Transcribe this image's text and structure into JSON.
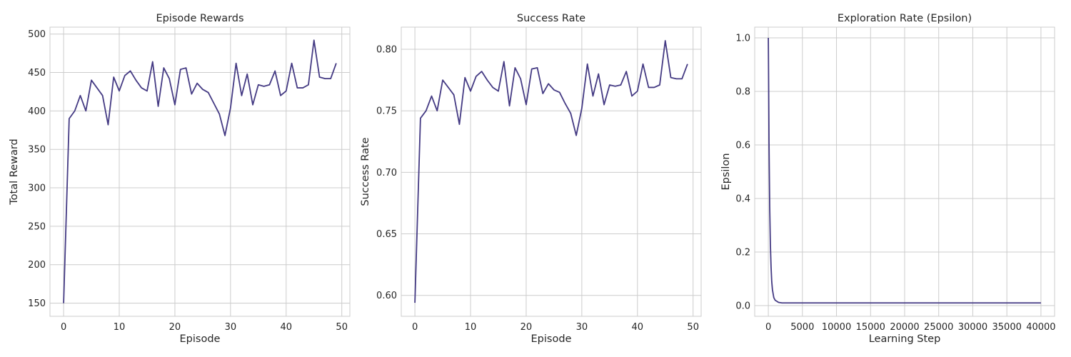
{
  "line_color": "#443a83",
  "chart_data": [
    {
      "type": "line",
      "title": "Episode Rewards",
      "xlabel": "Episode",
      "ylabel": "Total Reward",
      "xlim": [
        -2.45,
        51.45
      ],
      "ylim": [
        132.9,
        509.0
      ],
      "xticks": [
        0,
        10,
        20,
        30,
        40,
        50
      ],
      "yticks": [
        150,
        200,
        250,
        300,
        350,
        400,
        450,
        500
      ],
      "xtick_labels": [
        "0",
        "10",
        "20",
        "30",
        "40",
        "50"
      ],
      "ytick_labels": [
        "150",
        "200",
        "250",
        "300",
        "350",
        "400",
        "450",
        "500"
      ],
      "grid": true,
      "x": [
        0,
        1,
        2,
        3,
        4,
        5,
        6,
        7,
        8,
        9,
        10,
        11,
        12,
        13,
        14,
        15,
        16,
        17,
        18,
        19,
        20,
        21,
        22,
        23,
        24,
        25,
        26,
        27,
        28,
        29,
        30,
        31,
        32,
        33,
        34,
        35,
        36,
        37,
        38,
        39,
        40,
        41,
        42,
        43,
        44,
        45,
        46,
        47,
        48,
        49
      ],
      "y": [
        150,
        390,
        400,
        420,
        400,
        440,
        430,
        420,
        382,
        444,
        426,
        446,
        452,
        440,
        430,
        426,
        464,
        406,
        456,
        442,
        408,
        454,
        456,
        422,
        436,
        428,
        424,
        410,
        396,
        368,
        404,
        462,
        420,
        448,
        408,
        434,
        432,
        434,
        452,
        420,
        426,
        462,
        430,
        430,
        434,
        492,
        444,
        442,
        442,
        462
      ]
    },
    {
      "type": "line",
      "title": "Success Rate",
      "xlabel": "Episode",
      "ylabel": "Success Rate",
      "xlim": [
        -2.45,
        51.45
      ],
      "ylim": [
        0.583,
        0.818
      ],
      "xticks": [
        0,
        10,
        20,
        30,
        40,
        50
      ],
      "yticks": [
        0.6,
        0.65,
        0.7,
        0.75,
        0.8
      ],
      "xtick_labels": [
        "0",
        "10",
        "20",
        "30",
        "40",
        "50"
      ],
      "ytick_labels": [
        "0.60",
        "0.65",
        "0.70",
        "0.75",
        "0.80"
      ],
      "grid": true,
      "x": [
        0,
        1,
        2,
        3,
        4,
        5,
        6,
        7,
        8,
        9,
        10,
        11,
        12,
        13,
        14,
        15,
        16,
        17,
        18,
        19,
        20,
        21,
        22,
        23,
        24,
        25,
        26,
        27,
        28,
        29,
        30,
        31,
        32,
        33,
        34,
        35,
        36,
        37,
        38,
        39,
        40,
        41,
        42,
        43,
        44,
        45,
        46,
        47,
        48,
        49
      ],
      "y": [
        0.594,
        0.744,
        0.75,
        0.762,
        0.75,
        0.775,
        0.769,
        0.763,
        0.739,
        0.777,
        0.766,
        0.778,
        0.782,
        0.775,
        0.769,
        0.766,
        0.79,
        0.754,
        0.785,
        0.776,
        0.755,
        0.784,
        0.785,
        0.764,
        0.772,
        0.767,
        0.765,
        0.756,
        0.748,
        0.73,
        0.752,
        0.788,
        0.762,
        0.78,
        0.755,
        0.771,
        0.77,
        0.771,
        0.782,
        0.762,
        0.766,
        0.788,
        0.769,
        0.769,
        0.771,
        0.807,
        0.777,
        0.776,
        0.776,
        0.788
      ]
    },
    {
      "type": "line",
      "title": "Exploration Rate (Epsilon)",
      "xlabel": "Learning Step",
      "ylabel": "Epsilon",
      "xlim": [
        -2000,
        42000
      ],
      "ylim": [
        -0.04,
        1.04
      ],
      "xticks": [
        0,
        5000,
        10000,
        15000,
        20000,
        25000,
        30000,
        35000,
        40000
      ],
      "yticks": [
        0.0,
        0.2,
        0.4,
        0.6,
        0.8,
        1.0
      ],
      "xtick_labels": [
        "0",
        "5000",
        "10000",
        "15000",
        "20000",
        "25000",
        "30000",
        "35000",
        "40000"
      ],
      "ytick_labels": [
        "0.0",
        "0.2",
        "0.4",
        "0.6",
        "0.8",
        "1.0"
      ],
      "grid": true,
      "x": [
        0,
        100,
        200,
        300,
        400,
        500,
        600,
        800,
        1000,
        1500,
        2000,
        5000,
        10000,
        20000,
        30000,
        40000
      ],
      "y": [
        1.0,
        0.61,
        0.37,
        0.23,
        0.145,
        0.09,
        0.06,
        0.03,
        0.02,
        0.012,
        0.01,
        0.01,
        0.01,
        0.01,
        0.01,
        0.01
      ]
    }
  ]
}
